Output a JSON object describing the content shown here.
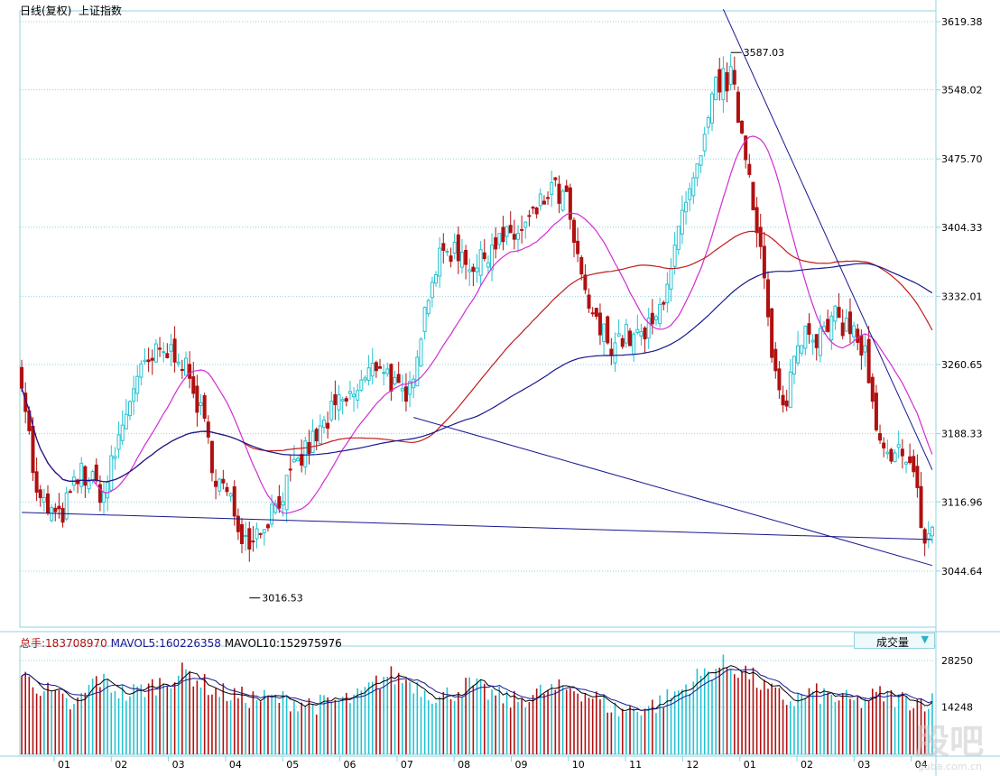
{
  "header": {
    "period_label": "日线(复权)",
    "index_name": "上证指数"
  },
  "volume_header": {
    "total_label": "总手:",
    "total_value": "183708970",
    "mavol5_label": "MAVOL5:",
    "mavol5_value": "160226358",
    "mavol10_label": "MAVOL10:",
    "mavol10_value": "152975976",
    "indicator_select": "成交量"
  },
  "watermark": {
    "main": "股吧",
    "sub": "guba.com.cn"
  },
  "colors": {
    "up": "#25c2d2",
    "down": "#b01010",
    "ma_short": "#d32bd3",
    "ma_mid": "#c41a1a",
    "ma_long": "#17178f",
    "trend": "#17178f",
    "grid": "#8fd3e0",
    "axis_text": "#000000"
  },
  "chart_data": {
    "type": "candlestick",
    "title": "上证指数",
    "y_axis_ticks": [
      "3619.38",
      "3548.02",
      "3475.70",
      "3404.33",
      "3332.01",
      "3260.65",
      "3188.33",
      "3116.96",
      "3044.64"
    ],
    "ylim": [
      2986,
      3625
    ],
    "x_axis_ticks": [
      "01",
      "02",
      "03",
      "04",
      "05",
      "06",
      "07",
      "08",
      "09",
      "10",
      "11",
      "12",
      "01",
      "02",
      "03",
      "04"
    ],
    "annotations": [
      {
        "label": "3587.03",
        "type": "high"
      },
      {
        "label": "3016.53",
        "type": "low"
      }
    ],
    "price_keypoints": [
      [
        0,
        3250
      ],
      [
        4,
        3120
      ],
      [
        10,
        3098
      ],
      [
        16,
        3148
      ],
      [
        22,
        3125
      ],
      [
        30,
        3240
      ],
      [
        36,
        3270
      ],
      [
        42,
        3275
      ],
      [
        48,
        3210
      ],
      [
        52,
        3145
      ],
      [
        56,
        3115
      ],
      [
        60,
        3078
      ],
      [
        64,
        3090
      ],
      [
        68,
        3115
      ],
      [
        72,
        3140
      ],
      [
        76,
        3170
      ],
      [
        80,
        3190
      ],
      [
        84,
        3215
      ],
      [
        88,
        3225
      ],
      [
        92,
        3245
      ],
      [
        96,
        3265
      ],
      [
        100,
        3238
      ],
      [
        103,
        3215
      ],
      [
        106,
        3280
      ],
      [
        110,
        3355
      ],
      [
        114,
        3382
      ],
      [
        118,
        3378
      ],
      [
        122,
        3360
      ],
      [
        126,
        3388
      ],
      [
        130,
        3392
      ],
      [
        134,
        3400
      ],
      [
        138,
        3420
      ],
      [
        142,
        3445
      ],
      [
        146,
        3430
      ],
      [
        150,
        3345
      ],
      [
        154,
        3300
      ],
      [
        158,
        3285
      ],
      [
        162,
        3290
      ],
      [
        166,
        3288
      ],
      [
        170,
        3305
      ],
      [
        174,
        3368
      ],
      [
        178,
        3425
      ],
      [
        182,
        3470
      ],
      [
        186,
        3555
      ],
      [
        190,
        3560
      ],
      [
        194,
        3485
      ],
      [
        198,
        3385
      ],
      [
        201,
        3265
      ],
      [
        204,
        3210
      ],
      [
        207,
        3268
      ],
      [
        210,
        3305
      ],
      [
        214,
        3288
      ],
      [
        218,
        3308
      ],
      [
        222,
        3300
      ],
      [
        226,
        3270
      ],
      [
        229,
        3185
      ],
      [
        233,
        3150
      ],
      [
        236,
        3178
      ],
      [
        239,
        3145
      ],
      [
        242,
        3075
      ],
      [
        244,
        3090
      ]
    ],
    "volume_axis_ticks": [
      "28250",
      "14248"
    ],
    "volume_ylim": [
      0,
      31000
    ],
    "volume_keypoints": [
      [
        0,
        24000
      ],
      [
        8,
        18000
      ],
      [
        14,
        14000
      ],
      [
        20,
        23000
      ],
      [
        28,
        18000
      ],
      [
        36,
        21000
      ],
      [
        44,
        25000
      ],
      [
        52,
        19000
      ],
      [
        60,
        17000
      ],
      [
        70,
        16500
      ],
      [
        80,
        15000
      ],
      [
        90,
        17000
      ],
      [
        98,
        24000
      ],
      [
        104,
        22000
      ],
      [
        112,
        17000
      ],
      [
        120,
        21000
      ],
      [
        126,
        18000
      ],
      [
        132,
        16000
      ],
      [
        140,
        19000
      ],
      [
        148,
        20000
      ],
      [
        154,
        17000
      ],
      [
        160,
        13000
      ],
      [
        170,
        15000
      ],
      [
        176,
        19000
      ],
      [
        182,
        24000
      ],
      [
        188,
        27000
      ],
      [
        194,
        25000
      ],
      [
        200,
        19000
      ],
      [
        206,
        16000
      ],
      [
        212,
        18500
      ],
      [
        218,
        17000
      ],
      [
        224,
        15500
      ],
      [
        230,
        18000
      ],
      [
        236,
        16500
      ],
      [
        244,
        16000
      ]
    ],
    "indicators": [
      {
        "name": "MAVOL5",
        "value": "160226358"
      },
      {
        "name": "MAVOL10",
        "value": "152975976"
      }
    ]
  }
}
